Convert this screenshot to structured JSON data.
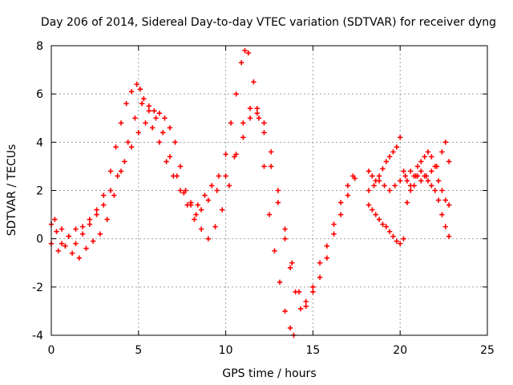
{
  "chart_data": {
    "type": "scatter",
    "title": "Day 206 of 2014, Sidereal Day-to-day VTEC variation (SDTVAR) for receiver dyng",
    "xlabel": "GPS time / hours",
    "ylabel": "SDTVAR / TECUs",
    "xlim": [
      0,
      25
    ],
    "ylim": [
      -4,
      8
    ],
    "xticks": [
      0,
      5,
      10,
      15,
      20,
      25
    ],
    "yticks": [
      -4,
      -2,
      0,
      2,
      4,
      6,
      8
    ],
    "grid": true,
    "legend": "none",
    "marker": "plus",
    "color": "#ff0000",
    "series": [
      {
        "x": [
          0.0,
          0.3,
          0.6,
          1.0,
          1.4,
          1.8,
          2.2,
          2.6,
          3.0,
          3.4,
          3.7,
          4.0,
          4.3,
          4.6,
          4.9,
          5.1,
          5.3,
          5.6,
          5.9,
          6.2,
          6.5,
          6.8,
          7.1,
          7.4,
          7.7,
          8.0,
          8.4,
          8.8,
          9.2,
          9.6,
          10.0,
          10.3,
          10.6,
          10.9,
          11.1,
          11.3,
          11.6,
          11.9,
          12.2,
          12.5,
          12.8,
          13.1,
          13.4,
          13.7,
          13.9
        ],
        "y": [
          0.6,
          0.3,
          -0.2,
          0.1,
          0.4,
          0.5,
          0.8,
          1.2,
          1.8,
          2.8,
          3.8,
          4.8,
          5.6,
          6.1,
          6.4,
          6.2,
          5.8,
          5.5,
          5.3,
          5.2,
          5.0,
          4.6,
          4.0,
          3.0,
          2.0,
          1.5,
          1.4,
          1.8,
          2.2,
          2.6,
          3.5,
          4.8,
          6.0,
          7.3,
          7.8,
          7.7,
          6.5,
          5.0,
          3.0,
          1.0,
          -0.5,
          -1.8,
          -3.0,
          -3.7,
          -4.0
        ]
      },
      {
        "x": [
          0.0,
          0.4,
          0.8,
          1.2,
          1.6,
          2.0,
          2.4,
          2.8,
          3.2,
          3.6,
          4.0,
          4.4,
          4.8,
          5.2,
          5.6,
          6.0,
          6.4,
          6.8,
          7.2,
          7.6,
          8.0,
          8.3,
          8.6,
          9.0,
          9.4,
          9.8,
          10.2,
          10.6,
          11.0,
          11.4,
          11.8,
          12.2,
          12.6,
          13.0,
          13.4,
          13.7,
          14.0,
          14.3,
          14.6,
          15.0,
          15.4,
          15.8,
          16.2,
          16.6,
          17.0,
          17.3
        ],
        "y": [
          -0.2,
          -0.5,
          -0.3,
          -0.6,
          -0.8,
          -0.4,
          -0.1,
          0.2,
          0.8,
          1.8,
          2.8,
          4.0,
          5.0,
          5.6,
          5.3,
          5.0,
          4.4,
          3.4,
          2.6,
          1.9,
          1.4,
          1.0,
          0.4,
          0.0,
          0.5,
          1.2,
          2.2,
          3.5,
          4.8,
          5.4,
          5.2,
          4.4,
          3.0,
          1.5,
          0.0,
          -1.2,
          -2.2,
          -2.9,
          -2.8,
          -2.0,
          -1.0,
          -0.3,
          0.6,
          1.5,
          2.2,
          2.6
        ]
      },
      {
        "x": [
          0.2,
          0.6,
          1.0,
          1.4,
          1.8,
          2.2,
          2.6,
          3.0,
          3.4,
          3.8,
          4.2,
          4.6,
          5.0,
          5.4,
          5.8,
          6.2,
          6.6,
          7.0,
          7.4,
          7.8,
          8.2,
          8.6,
          9.0,
          9.5,
          10.0,
          10.5,
          11.0,
          11.4,
          11.8,
          12.2,
          12.6,
          13.0,
          13.4,
          13.8,
          14.2,
          14.6,
          15.0,
          15.4,
          15.8,
          16.2,
          16.6,
          17.0,
          17.4
        ],
        "y": [
          0.8,
          0.4,
          0.1,
          -0.2,
          0.2,
          0.6,
          1.0,
          1.4,
          2.0,
          2.6,
          3.2,
          3.8,
          4.4,
          4.8,
          4.6,
          4.0,
          3.2,
          2.6,
          2.0,
          1.4,
          0.8,
          1.2,
          1.6,
          2.0,
          2.6,
          3.4,
          4.2,
          5.0,
          5.4,
          4.8,
          3.6,
          2.0,
          0.4,
          -1.0,
          -2.2,
          -2.6,
          -2.2,
          -1.6,
          -0.8,
          0.2,
          1.0,
          1.8,
          2.5
        ]
      },
      {
        "x": [
          18.2,
          18.4,
          18.6,
          18.8,
          19.0,
          19.2,
          19.4,
          19.6,
          19.8,
          20.0,
          20.2,
          20.4,
          20.6,
          20.8,
          21.0,
          21.2,
          21.4,
          21.6,
          21.8,
          22.0,
          22.2,
          22.4,
          22.6,
          22.8
        ],
        "y": [
          1.4,
          1.2,
          1.0,
          0.8,
          0.6,
          0.5,
          0.3,
          0.1,
          -0.1,
          -0.2,
          0.0,
          1.5,
          2.0,
          2.2,
          2.6,
          2.8,
          2.6,
          2.4,
          2.2,
          2.0,
          1.6,
          1.0,
          0.5,
          0.1
        ]
      },
      {
        "x": [
          18.2,
          18.4,
          18.6,
          18.8,
          19.0,
          19.2,
          19.4,
          19.6,
          19.8,
          20.0,
          20.2,
          20.4,
          20.6,
          20.8,
          21.0,
          21.2,
          21.4,
          21.6,
          21.8,
          22.0,
          22.2,
          22.4,
          22.6,
          22.8
        ],
        "y": [
          2.8,
          2.6,
          2.4,
          2.6,
          2.9,
          3.2,
          3.4,
          3.6,
          3.8,
          4.2,
          2.8,
          2.4,
          2.2,
          2.6,
          3.0,
          3.2,
          3.4,
          3.6,
          3.4,
          3.0,
          2.4,
          2.0,
          1.6,
          1.4
        ]
      },
      {
        "x": [
          18.2,
          18.5,
          18.8,
          19.1,
          19.4,
          19.7,
          20.0,
          20.3,
          20.6,
          20.9,
          21.2,
          21.5,
          21.8,
          22.1,
          22.4,
          22.6,
          22.8
        ],
        "y": [
          2.0,
          2.2,
          2.4,
          2.2,
          2.0,
          2.2,
          2.4,
          2.6,
          2.8,
          2.6,
          2.4,
          2.6,
          2.8,
          3.0,
          3.6,
          4.0,
          3.2
        ]
      }
    ]
  }
}
